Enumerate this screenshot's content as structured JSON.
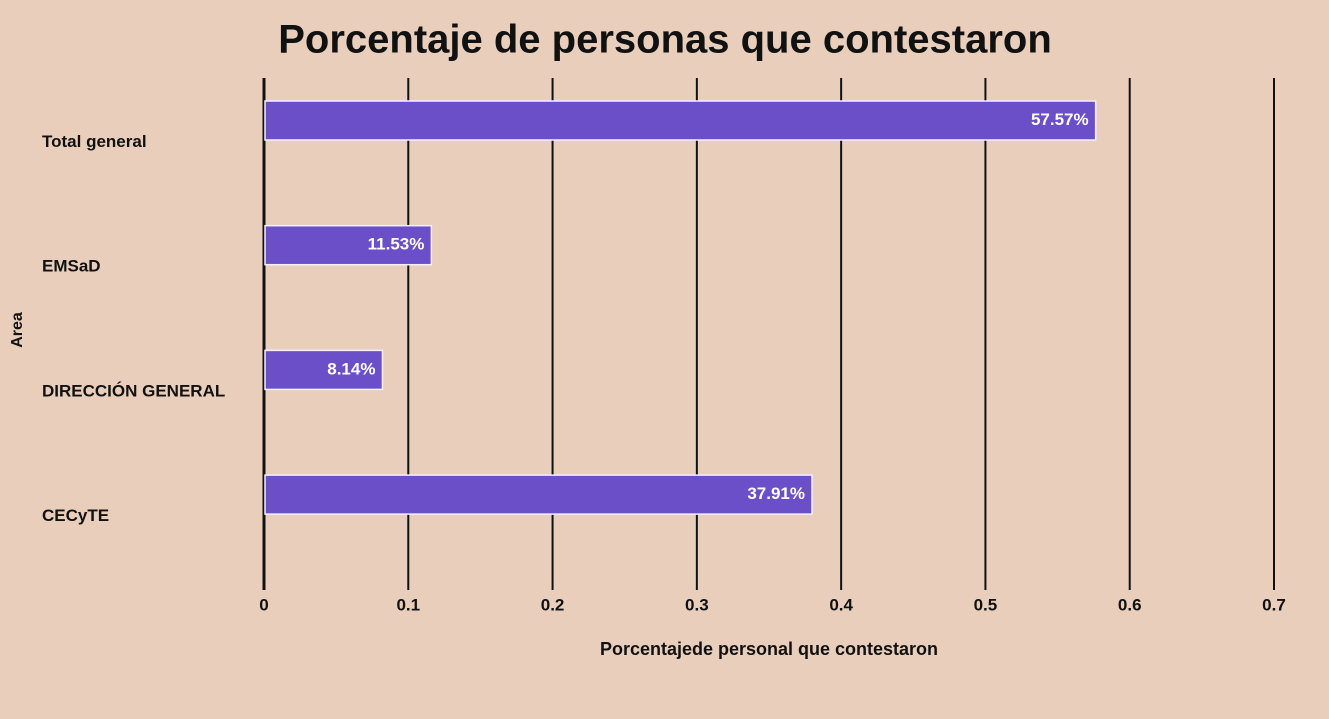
{
  "chart_data": {
    "type": "bar",
    "orientation": "horizontal",
    "title": "Porcentaje de personas que contestaron",
    "xlabel": "Porcentajede personal  que contestaron",
    "ylabel": "Area",
    "categories": [
      "Total general",
      "EMSaD",
      "DIRECCIÓN GENERAL",
      "CECyTE"
    ],
    "values": [
      0.5757,
      0.1153,
      0.0814,
      0.3791
    ],
    "value_labels": [
      "57.57%",
      "11.53%",
      "8.14%",
      "37.91%"
    ],
    "color": "#6a4fc8",
    "xlim": [
      0,
      0.7
    ],
    "xticks": [
      0,
      0.1,
      0.2,
      0.3,
      0.4,
      0.5,
      0.6,
      0.7
    ],
    "grid": true
  }
}
